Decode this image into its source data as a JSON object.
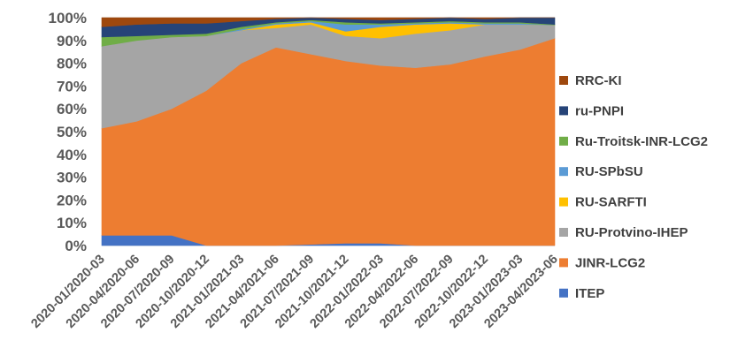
{
  "chart_data": {
    "type": "area",
    "stacked": true,
    "normalized": true,
    "categories": [
      "2020-01/2020-03",
      "2020-04/2020-06",
      "2020-07/2020-09",
      "2020-10/2020-12",
      "2021-01/2021-03",
      "2021-04/2021-06",
      "2021-07/2021-09",
      "2021-10/2021-12",
      "2022-01/2022-03",
      "2022-04/2022-06",
      "2022-07/2022-09",
      "2022-10/2022-12",
      "2023-01/2023-03",
      "2023-04/2023-06"
    ],
    "y_ticks": [
      "0%",
      "10%",
      "20%",
      "30%",
      "40%",
      "50%",
      "60%",
      "70%",
      "80%",
      "90%",
      "100%"
    ],
    "ylim": [
      0,
      100
    ],
    "legend_position": "right",
    "series": [
      {
        "name": "ITEP",
        "color": "#4472C4",
        "values": [
          4.5,
          4.5,
          4.5,
          0,
          0,
          0,
          0.5,
          1,
          1,
          0,
          0,
          0,
          0,
          0
        ]
      },
      {
        "name": "JINR-LCG2",
        "color": "#ED7D31",
        "values": [
          47,
          50,
          55.5,
          68,
          80,
          87,
          83.5,
          80,
          78,
          78,
          79.5,
          83,
          86,
          91
        ]
      },
      {
        "name": "RU-Protvino-IHEP",
        "color": "#A5A5A5",
        "values": [
          36,
          35.5,
          31.5,
          24,
          14.5,
          8.5,
          13,
          11,
          12,
          15,
          15,
          14,
          11,
          5.8
        ]
      },
      {
        "name": "RU-SARFTI",
        "color": "#FFC000",
        "values": [
          0,
          0,
          0,
          0,
          0,
          1.5,
          1,
          2,
          5,
          4,
          3,
          0,
          0,
          0
        ]
      },
      {
        "name": "RU-SPbSU",
        "color": "#5B9BD5",
        "values": [
          0,
          0,
          0,
          0,
          0.5,
          0.5,
          0.5,
          3,
          1,
          0.5,
          0.5,
          0.5,
          0.5,
          0
        ]
      },
      {
        "name": "Ru-Troitsk-INR-LCG2",
        "color": "#70AD47",
        "values": [
          4,
          2,
          1,
          1,
          1,
          0.5,
          0.5,
          1,
          0.5,
          0.5,
          0.5,
          0.5,
          0.5,
          0.2
        ]
      },
      {
        "name": "ru-PNPI",
        "color": "#264478",
        "values": [
          4.5,
          5,
          5,
          4.5,
          2.5,
          1.5,
          1,
          1.5,
          1.5,
          1.5,
          1.5,
          1.5,
          2,
          3
        ]
      },
      {
        "name": "RRC-KI",
        "color": "#9E480E",
        "values": [
          4,
          3,
          2.5,
          2.5,
          1.5,
          0.5,
          0,
          0.5,
          1,
          0.5,
          0,
          0.5,
          0,
          0
        ]
      }
    ],
    "legend_order": [
      "RRC-KI",
      "ru-PNPI",
      "Ru-Troitsk-INR-LCG2",
      "RU-SPbSU",
      "RU-SARFTI",
      "RU-Protvino-IHEP",
      "JINR-LCG2",
      "ITEP"
    ]
  }
}
